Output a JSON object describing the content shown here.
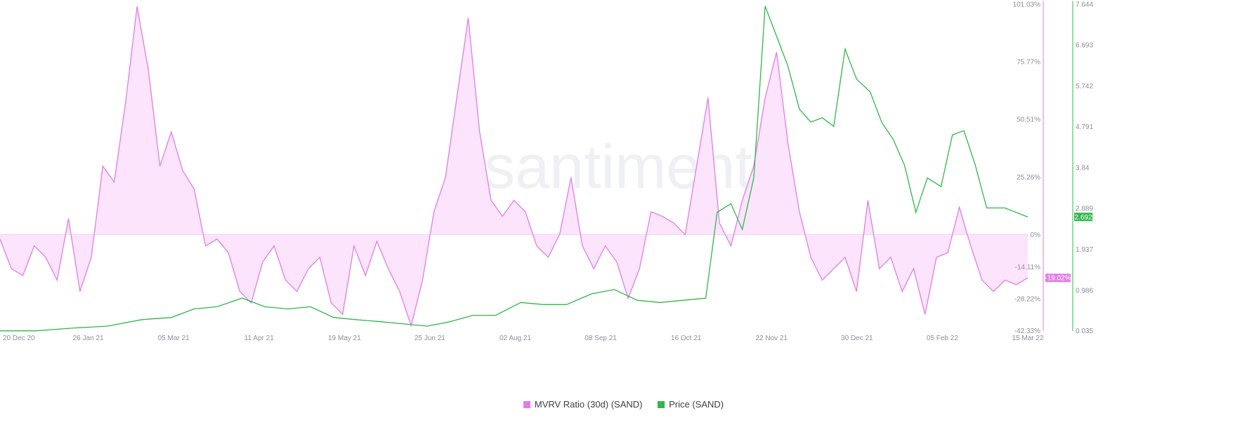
{
  "watermark": "·santiment·",
  "colors": {
    "mvrv": "#e07ee6",
    "mvrv_fill": "#fbe4fc",
    "price": "#2fb84a",
    "axis_text": "#8a8f9f",
    "zero_line": "#f1b6f4"
  },
  "chart_data": {
    "type": "line",
    "title": "",
    "x_ticks": [
      "20 Dec 20",
      "26 Jan 21",
      "05 Mar 21",
      "11 Apr 21",
      "19 May 21",
      "25 Jun 21",
      "02 Aug 21",
      "08 Sep 21",
      "16 Oct 21",
      "22 Nov 21",
      "30 Dec 21",
      "05 Feb 22",
      "15 Mar 22"
    ],
    "x_range": [
      "2020-12-20",
      "2022-03-15"
    ],
    "y_left_ticks": [
      "101.03%",
      "75.77%",
      "50.51%",
      "25.26%",
      "0%",
      "-14.11%",
      "-28.22%",
      "-42.33%"
    ],
    "y_left_range": [
      -42.33,
      101.03
    ],
    "y_right_ticks": [
      "7.644",
      "6.693",
      "5.742",
      "4.791",
      "3.84",
      "2.889",
      "1.937",
      "0.986",
      "0.035"
    ],
    "y_right_range": [
      0.035,
      7.644
    ],
    "current_values": {
      "mvrv": "-19.02%",
      "price": "2.692"
    },
    "legend": [
      {
        "name": "MVRV Ratio (30d) (SAND)",
        "color": "#e07ee6"
      },
      {
        "name": "Price (SAND)",
        "color": "#2fb84a"
      }
    ],
    "series": [
      {
        "name": "MVRV Ratio (30d) (SAND)",
        "axis": "left",
        "unit": "%",
        "x": [
          "2020-12-20",
          "2020-12-25",
          "2020-12-30",
          "2021-01-04",
          "2021-01-09",
          "2021-01-14",
          "2021-01-19",
          "2021-01-24",
          "2021-01-29",
          "2021-02-03",
          "2021-02-08",
          "2021-02-13",
          "2021-02-18",
          "2021-02-23",
          "2021-02-28",
          "2021-03-05",
          "2021-03-10",
          "2021-03-15",
          "2021-03-20",
          "2021-03-25",
          "2021-03-30",
          "2021-04-04",
          "2021-04-09",
          "2021-04-14",
          "2021-04-19",
          "2021-04-24",
          "2021-04-29",
          "2021-05-04",
          "2021-05-09",
          "2021-05-14",
          "2021-05-19",
          "2021-05-24",
          "2021-05-29",
          "2021-06-03",
          "2021-06-08",
          "2021-06-13",
          "2021-06-18",
          "2021-06-23",
          "2021-06-28",
          "2021-07-03",
          "2021-07-08",
          "2021-07-13",
          "2021-07-18",
          "2021-07-23",
          "2021-07-28",
          "2021-08-02",
          "2021-08-07",
          "2021-08-12",
          "2021-08-17",
          "2021-08-22",
          "2021-08-27",
          "2021-09-01",
          "2021-09-06",
          "2021-09-11",
          "2021-09-16",
          "2021-09-21",
          "2021-09-26",
          "2021-10-01",
          "2021-10-06",
          "2021-10-11",
          "2021-10-16",
          "2021-10-21",
          "2021-10-26",
          "2021-10-31",
          "2021-11-05",
          "2021-11-10",
          "2021-11-15",
          "2021-11-20",
          "2021-11-25",
          "2021-11-30",
          "2021-12-05",
          "2021-12-10",
          "2021-12-15",
          "2021-12-20",
          "2021-12-25",
          "2021-12-30",
          "2022-01-04",
          "2022-01-09",
          "2022-01-14",
          "2022-01-19",
          "2022-01-24",
          "2022-01-29",
          "2022-02-03",
          "2022-02-08",
          "2022-02-13",
          "2022-02-18",
          "2022-02-23",
          "2022-02-28",
          "2022-03-05",
          "2022-03-10",
          "2022-03-15"
        ],
        "values": [
          -2,
          -15,
          -18,
          -5,
          -10,
          -20,
          7,
          -25,
          -10,
          30,
          23,
          58,
          100,
          72,
          30,
          45,
          28,
          20,
          -5,
          -2,
          -8,
          -25,
          -30,
          -12,
          -5,
          -20,
          -25,
          -15,
          -10,
          -30,
          -35,
          -5,
          -18,
          -3,
          -15,
          -25,
          -40,
          -20,
          10,
          25,
          60,
          95,
          45,
          15,
          8,
          15,
          10,
          -5,
          -10,
          0,
          25,
          -5,
          -15,
          -5,
          -12,
          -28,
          -15,
          10,
          8,
          5,
          0,
          30,
          60,
          5,
          -5,
          15,
          30,
          60,
          80,
          40,
          10,
          -10,
          -20,
          -15,
          -10,
          -25,
          15,
          -15,
          -10,
          -25,
          -15,
          -35,
          -10,
          -8,
          12,
          -5,
          -20,
          -25,
          -20,
          -22,
          -19.02
        ]
      },
      {
        "name": "Price (SAND)",
        "axis": "right",
        "unit": "USD",
        "x": [
          "2020-12-20",
          "2021-01-05",
          "2021-01-20",
          "2021-02-05",
          "2021-02-20",
          "2021-03-05",
          "2021-03-15",
          "2021-03-25",
          "2021-04-05",
          "2021-04-15",
          "2021-04-25",
          "2021-05-05",
          "2021-05-15",
          "2021-05-25",
          "2021-06-05",
          "2021-06-15",
          "2021-06-25",
          "2021-07-05",
          "2021-07-15",
          "2021-07-25",
          "2021-08-05",
          "2021-08-15",
          "2021-08-25",
          "2021-09-05",
          "2021-09-15",
          "2021-09-25",
          "2021-10-05",
          "2021-10-15",
          "2021-10-25",
          "2021-10-30",
          "2021-11-05",
          "2021-11-10",
          "2021-11-15",
          "2021-11-20",
          "2021-11-25",
          "2021-11-30",
          "2021-12-05",
          "2021-12-10",
          "2021-12-15",
          "2021-12-20",
          "2021-12-25",
          "2021-12-30",
          "2022-01-05",
          "2022-01-10",
          "2022-01-15",
          "2022-01-20",
          "2022-01-25",
          "2022-01-30",
          "2022-02-05",
          "2022-02-10",
          "2022-02-15",
          "2022-02-20",
          "2022-02-25",
          "2022-03-05",
          "2022-03-15"
        ],
        "values": [
          0.04,
          0.04,
          0.1,
          0.15,
          0.3,
          0.35,
          0.55,
          0.6,
          0.8,
          0.6,
          0.55,
          0.6,
          0.35,
          0.3,
          0.25,
          0.2,
          0.15,
          0.25,
          0.4,
          0.4,
          0.7,
          0.65,
          0.65,
          0.9,
          1.0,
          0.75,
          0.7,
          0.75,
          0.8,
          2.8,
          3.0,
          2.4,
          3.6,
          7.6,
          6.9,
          6.2,
          5.2,
          4.9,
          5.0,
          4.8,
          6.6,
          5.9,
          5.6,
          4.9,
          4.5,
          3.9,
          2.8,
          3.6,
          3.4,
          4.6,
          4.7,
          3.9,
          2.9,
          2.9,
          2.69
        ]
      }
    ]
  }
}
